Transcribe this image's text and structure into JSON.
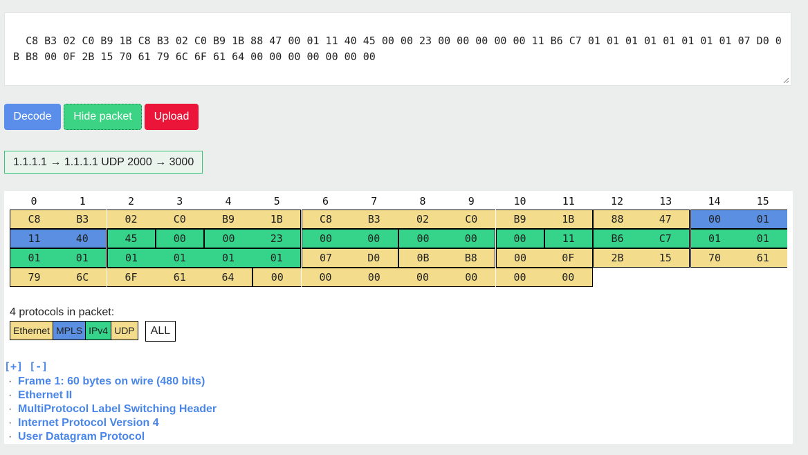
{
  "hex_input": {
    "value": "C8 B3 02 C0 B9 1B C8 B3 02 C0 B9 1B 88 47 00 01 11 40 45 00 00 23 00 00 00 00 00 11 B6 C7 01 01 01 01 01 01 01 01 07 D0 0B B8 00 0F 2B 15 70 61 79 6C 6F 61 64 00 00 00 00 00 00 00"
  },
  "buttons": {
    "decode": "Decode",
    "hide_packet": "Hide packet",
    "upload": "Upload"
  },
  "summary": "1.1.1.1 → 1.1.1.1 UDP 2000 → 3000",
  "column_indices": [
    "0",
    "1",
    "2",
    "3",
    "4",
    "5",
    "6",
    "7",
    "8",
    "9",
    "10",
    "11",
    "12",
    "13",
    "14",
    "15"
  ],
  "bytes": [
    "C8",
    "B3",
    "02",
    "C0",
    "B9",
    "1B",
    "C8",
    "B3",
    "02",
    "C0",
    "B9",
    "1B",
    "88",
    "47",
    "00",
    "01",
    "11",
    "40",
    "45",
    "00",
    "00",
    "23",
    "00",
    "00",
    "00",
    "00",
    "00",
    "11",
    "B6",
    "C7",
    "01",
    "01",
    "01",
    "01",
    "01",
    "01",
    "01",
    "01",
    "07",
    "D0",
    "0B",
    "B8",
    "00",
    "0F",
    "2B",
    "15",
    "70",
    "61",
    "79",
    "6C",
    "6F",
    "61",
    "64",
    "00",
    "00",
    "00",
    "00",
    "00",
    "00",
    "00"
  ],
  "protocols": {
    "count_label": "4 protocols in packet:",
    "items": [
      {
        "label": "Ethernet",
        "color": "#f3dc8c"
      },
      {
        "label": "MPLS",
        "color": "#5b8fe2"
      },
      {
        "label": "IPv4",
        "color": "#35d48a"
      },
      {
        "label": "UDP",
        "color": "#f3dc8c"
      }
    ],
    "all_label": "ALL"
  },
  "tree": {
    "toggle": "[+] [-]",
    "items": [
      "Frame 1: 60 bytes on wire (480 bits)",
      "Ethernet II",
      "MultiProtocol Label Switching Header",
      "Internet Protocol Version 4",
      "User Datagram Protocol"
    ],
    "bullet": "·"
  }
}
